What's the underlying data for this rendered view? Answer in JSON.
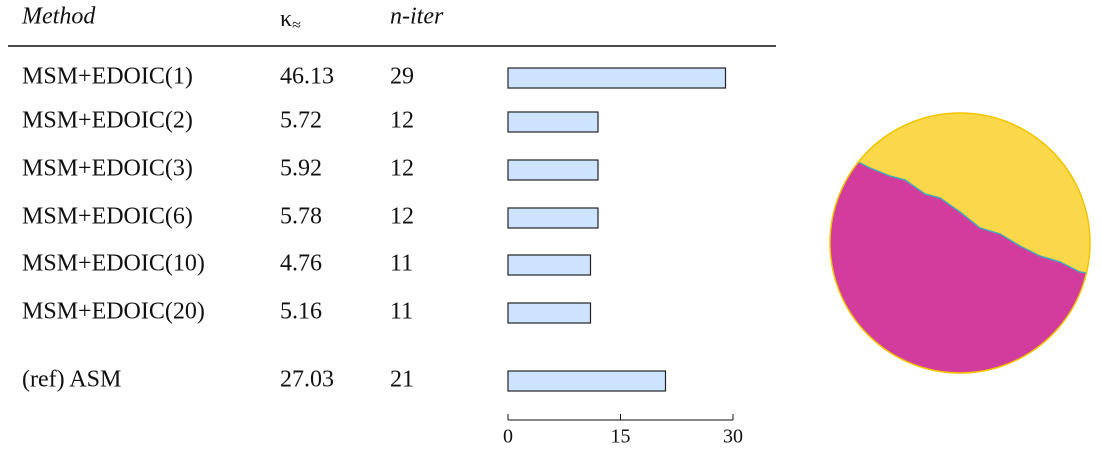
{
  "table": {
    "headers": [
      "Method",
      "n-iter"
    ],
    "kappa_header": {
      "symbol": "κ",
      "subscript": "≈"
    },
    "rows": [
      [
        "MSM+EDOIC(1)",
        46.13,
        29
      ],
      [
        "MSM+EDOIC(2)",
        5.72,
        12
      ],
      [
        "MSM+EDOIC(3)",
        5.92,
        12
      ],
      [
        "MSM+EDOIC(6)",
        5.78,
        12
      ],
      [
        "MSM+EDOIC(10)",
        4.76,
        11
      ],
      [
        "MSM+EDOIC(20)",
        5.16,
        11
      ]
    ],
    "reference": [
      "(ref) ASM",
      27.03,
      21
    ]
  },
  "bars": {
    "xlim": [
      0,
      30
    ],
    "xticks": [
      0,
      15,
      30
    ],
    "color": "#cce4ff"
  }
}
